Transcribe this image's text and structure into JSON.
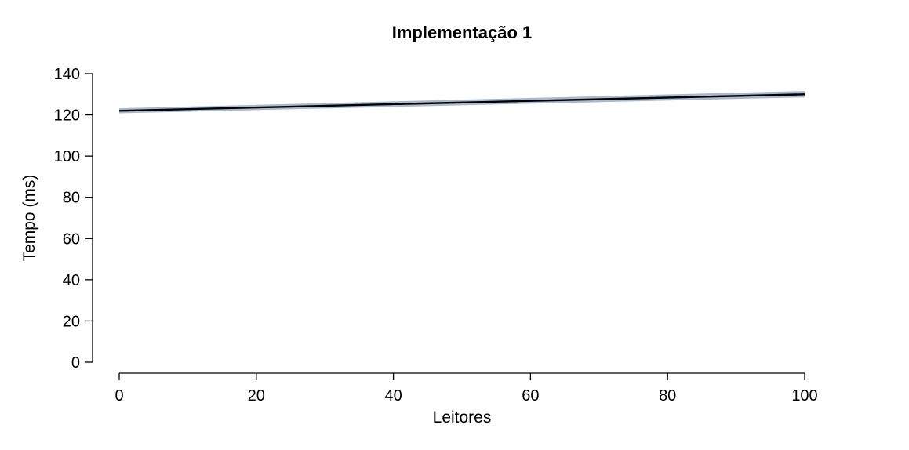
{
  "chart_data": {
    "type": "line",
    "title": "Implementação 1",
    "xlabel": "Leitores",
    "ylabel": "Tempo (ms)",
    "xlim": [
      0,
      100
    ],
    "ylim": [
      0,
      140
    ],
    "xticks": [
      0,
      20,
      40,
      60,
      80,
      100
    ],
    "yticks": [
      0,
      20,
      40,
      60,
      80,
      100,
      120,
      140
    ],
    "grid": false,
    "series": [
      {
        "x": [
          0,
          100
        ],
        "y": [
          122,
          130
        ],
        "band_lower": [
          120.8,
          128.5
        ],
        "band_upper": [
          123.2,
          131.6
        ],
        "line_color": "#000000",
        "band_color": "#a9b9cf"
      }
    ]
  }
}
